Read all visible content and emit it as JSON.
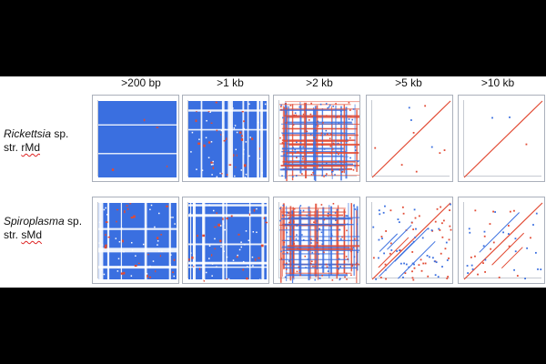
{
  "columns": [
    ">200 bp",
    ">1 kb",
    ">2 kb",
    ">5 kb",
    ">10 kb"
  ],
  "rows": [
    {
      "genus": "Rickettsia",
      "genus_suffix": " sp.",
      "line2_pre": "str. ",
      "line2_mark": "rMd",
      "line2_post": ""
    },
    {
      "genus": "Spiroplasma",
      "genus_suffix": " sp.",
      "line2_pre": "str. ",
      "line2_mark": "sMd",
      "line2_post": ""
    }
  ],
  "colors": {
    "background": "#000000",
    "panel": "#ffffff",
    "forward_match": "#e24a33",
    "reverse_match": "#3a6fe0"
  }
}
